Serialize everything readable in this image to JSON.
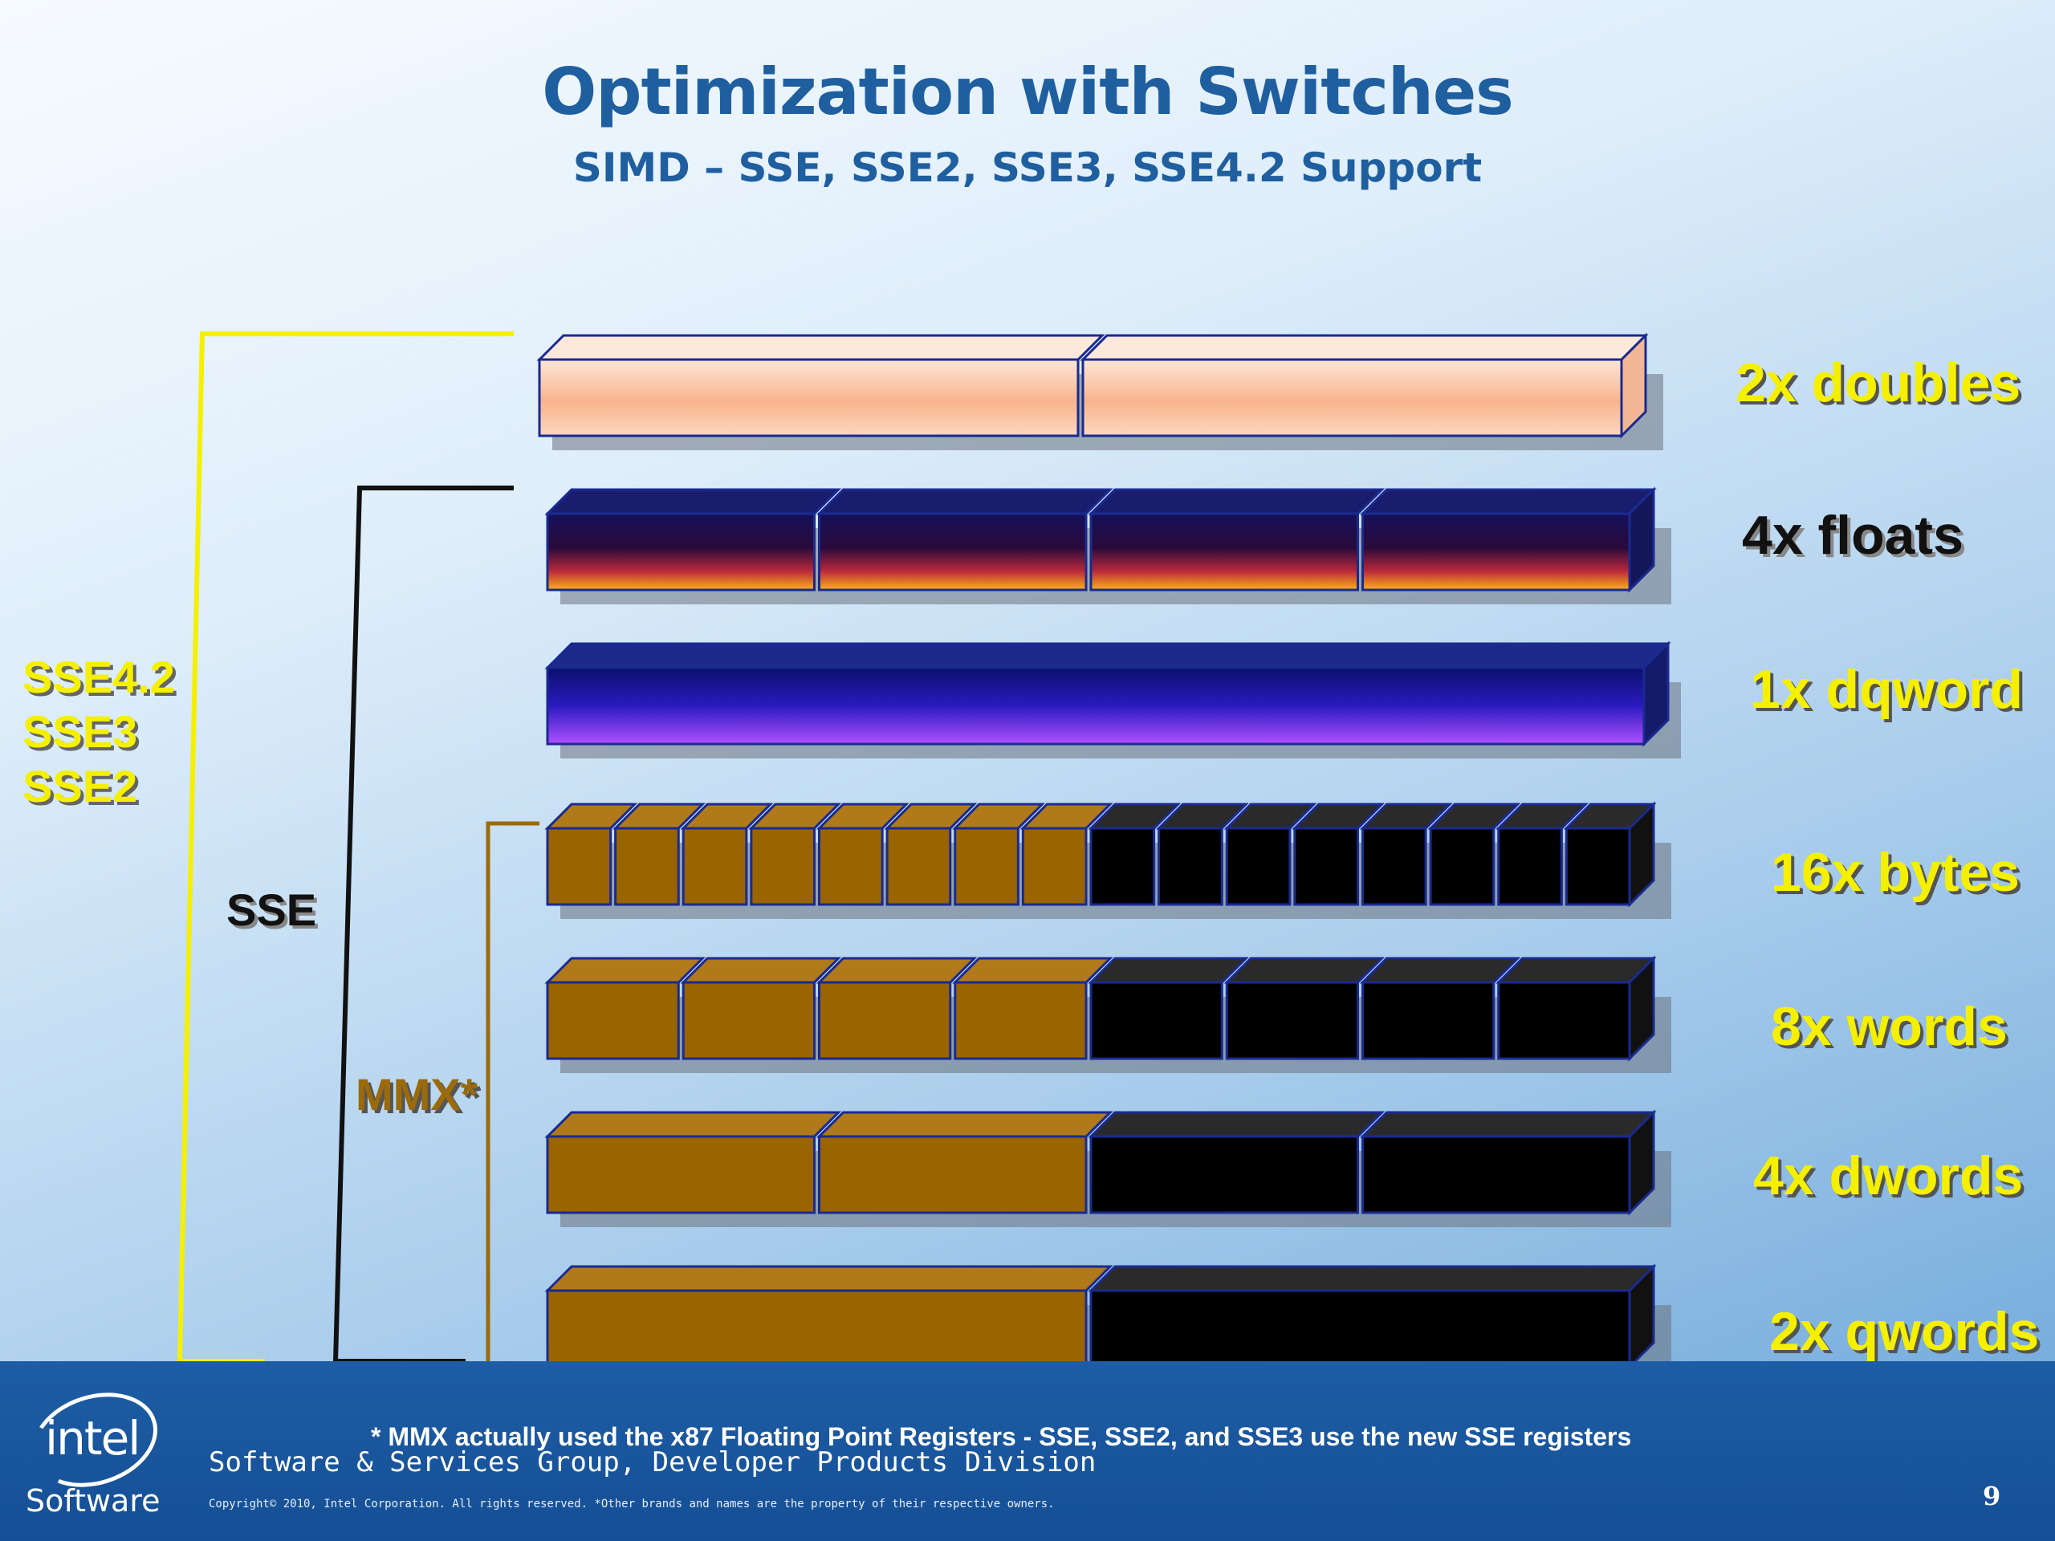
{
  "title": "Optimization with Switches",
  "subtitle": "SIMD – SSE, SSE2, SSE3, SSE4.2 Support",
  "rows": [
    {
      "label": "2x doubles",
      "segments": 2,
      "style": "peach"
    },
    {
      "label": "4x floats",
      "segments": 4,
      "style": "sunset"
    },
    {
      "label": "1x dqword",
      "segments": 1,
      "style": "violet"
    },
    {
      "label": "16x bytes",
      "segments": 16,
      "style": "split"
    },
    {
      "label": "8x words",
      "segments": 8,
      "style": "split"
    },
    {
      "label": "4x dwords",
      "segments": 4,
      "style": "split"
    },
    {
      "label": "2x qwords",
      "segments": 2,
      "style": "split"
    }
  ],
  "brackets": {
    "sse_ext": [
      "SSE4.2",
      "SSE3",
      "SSE2"
    ],
    "sse": "SSE",
    "mmx": "MMX*"
  },
  "colors": {
    "sse_ext_bracket": "#f5f000",
    "sse_bracket": "#111111",
    "mmx_bracket": "#9a6a0c",
    "mmx_half": "#9a6400",
    "sse_half": "#000000",
    "outline": "#1a2a90"
  },
  "footer": {
    "footnote": "* MMX actually used the x87 Floating Point Registers  - SSE, SSE2, and SSE3 use the new SSE registers",
    "division": "Software & Services Group, Developer Products Division",
    "copyright": "Copyright© 2010, Intel Corporation. All rights reserved. *Other brands and names are the property of their respective owners.",
    "page_number": "9",
    "logo_word": "intel",
    "logo_sub": "Software"
  }
}
